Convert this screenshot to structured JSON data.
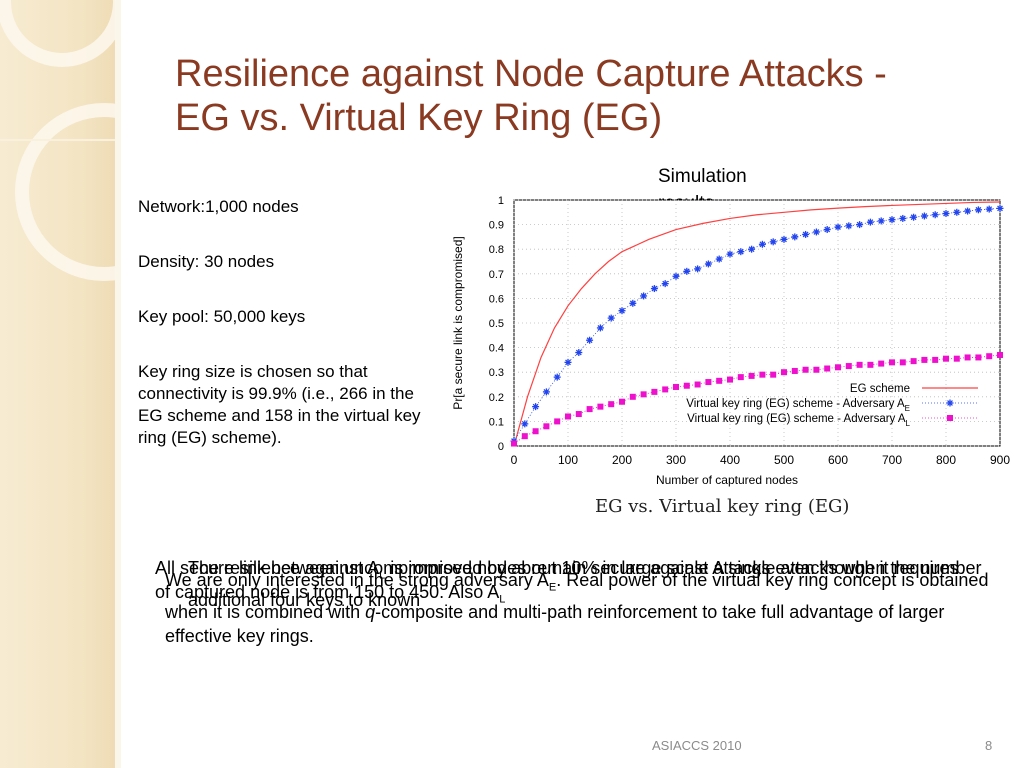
{
  "slide": {
    "title_line1": "Resilience against Node Capture Attacks -",
    "title_line2": "EG vs. Virtual Key Ring (EG)",
    "bullets": [
      "Network:1,000 nodes",
      "Density: 30 nodes",
      "Key pool: 50,000 keys",
      "Key ring size is chosen so that connectivity is 99.9% (i.e., 266 in the EG scheme and 158 in the virtual key ring (EG) scheme)."
    ],
    "simulation_label": "Simulation results",
    "caption": "EG vs. Virtual key ring (EG)",
    "overlapping_text_a": "All secure link between uncompromised nodes remain secure against A single attacks when the number of captured node is from 150 to 450. Also A",
    "overlapping_text_a_tail": "L",
    "overlapping_text_b_pre": "The resilience against A",
    "overlapping_text_b_mid": " is improved by about 10% in large scale attacks even though it requires additional four keys to known",
    "overlapping_text_c": "We are only interested in the strong adversary A",
    "overlapping_text_c_sub": "E",
    "overlapping_text_c_post": ". Real power of the virtual key ring concept is obtained when it is combined with ",
    "overlapping_text_c_italic": "q",
    "overlapping_text_c_end": "-composite and multi-path reinforcement to take full advantage of larger effective key rings.",
    "footer_left": "ASIACCS 2010",
    "footer_right": "8"
  },
  "chart_data": {
    "type": "line",
    "xlabel": "Number of captured nodes",
    "ylabel": "Pr[a secure link is compromised]",
    "xlim": [
      0,
      900
    ],
    "ylim": [
      0,
      1
    ],
    "xticks": [
      "0",
      "100",
      "200",
      "300",
      "400",
      "500",
      "600",
      "700",
      "800",
      "900"
    ],
    "yticks": [
      "0",
      "0.1",
      "0.2",
      "0.3",
      "0.4",
      "0.5",
      "0.6",
      "0.7",
      "0.8",
      "0.9",
      "1"
    ],
    "grid": true,
    "legend_position": "bottom-right",
    "series": [
      {
        "name": "EG scheme",
        "color": "#ff4040",
        "marker": "none",
        "x": [
          0,
          25,
          50,
          75,
          100,
          125,
          150,
          175,
          200,
          250,
          300,
          350,
          400,
          450,
          500,
          550,
          600,
          650,
          700,
          750,
          800,
          850,
          900
        ],
        "y": [
          0.0,
          0.2,
          0.36,
          0.48,
          0.57,
          0.64,
          0.7,
          0.75,
          0.79,
          0.84,
          0.88,
          0.905,
          0.925,
          0.94,
          0.95,
          0.96,
          0.967,
          0.973,
          0.978,
          0.982,
          0.986,
          0.99,
          0.992
        ]
      },
      {
        "name": "Virtual key ring (EG) scheme - Adversary A",
        "name_sub": "E",
        "color": "#2244ee",
        "marker": "asterisk",
        "x": [
          0,
          20,
          40,
          60,
          80,
          100,
          120,
          140,
          160,
          180,
          200,
          220,
          240,
          260,
          280,
          300,
          320,
          340,
          360,
          380,
          400,
          420,
          440,
          460,
          480,
          500,
          520,
          540,
          560,
          580,
          600,
          620,
          640,
          660,
          680,
          700,
          720,
          740,
          760,
          780,
          800,
          820,
          840,
          860,
          880,
          900
        ],
        "y": [
          0.02,
          0.09,
          0.16,
          0.22,
          0.28,
          0.34,
          0.38,
          0.43,
          0.48,
          0.52,
          0.55,
          0.58,
          0.61,
          0.64,
          0.66,
          0.69,
          0.71,
          0.72,
          0.74,
          0.76,
          0.78,
          0.79,
          0.8,
          0.82,
          0.83,
          0.84,
          0.85,
          0.86,
          0.87,
          0.88,
          0.89,
          0.895,
          0.9,
          0.91,
          0.915,
          0.92,
          0.925,
          0.93,
          0.935,
          0.94,
          0.945,
          0.95,
          0.955,
          0.96,
          0.963,
          0.966
        ]
      },
      {
        "name": "Virtual key ring (EG) scheme - Adversary A",
        "name_sub": "L",
        "color": "#ee10cc",
        "marker": "square",
        "x": [
          0,
          20,
          40,
          60,
          80,
          100,
          120,
          140,
          160,
          180,
          200,
          220,
          240,
          260,
          280,
          300,
          320,
          340,
          360,
          380,
          400,
          420,
          440,
          460,
          480,
          500,
          520,
          540,
          560,
          580,
          600,
          620,
          640,
          660,
          680,
          700,
          720,
          740,
          760,
          780,
          800,
          820,
          840,
          860,
          880,
          900
        ],
        "y": [
          0.01,
          0.04,
          0.06,
          0.08,
          0.1,
          0.12,
          0.13,
          0.15,
          0.16,
          0.17,
          0.18,
          0.2,
          0.21,
          0.22,
          0.23,
          0.24,
          0.245,
          0.25,
          0.26,
          0.265,
          0.27,
          0.28,
          0.285,
          0.29,
          0.29,
          0.3,
          0.305,
          0.31,
          0.31,
          0.315,
          0.32,
          0.325,
          0.33,
          0.33,
          0.335,
          0.34,
          0.34,
          0.345,
          0.35,
          0.35,
          0.355,
          0.355,
          0.36,
          0.36,
          0.365,
          0.37
        ]
      }
    ]
  }
}
